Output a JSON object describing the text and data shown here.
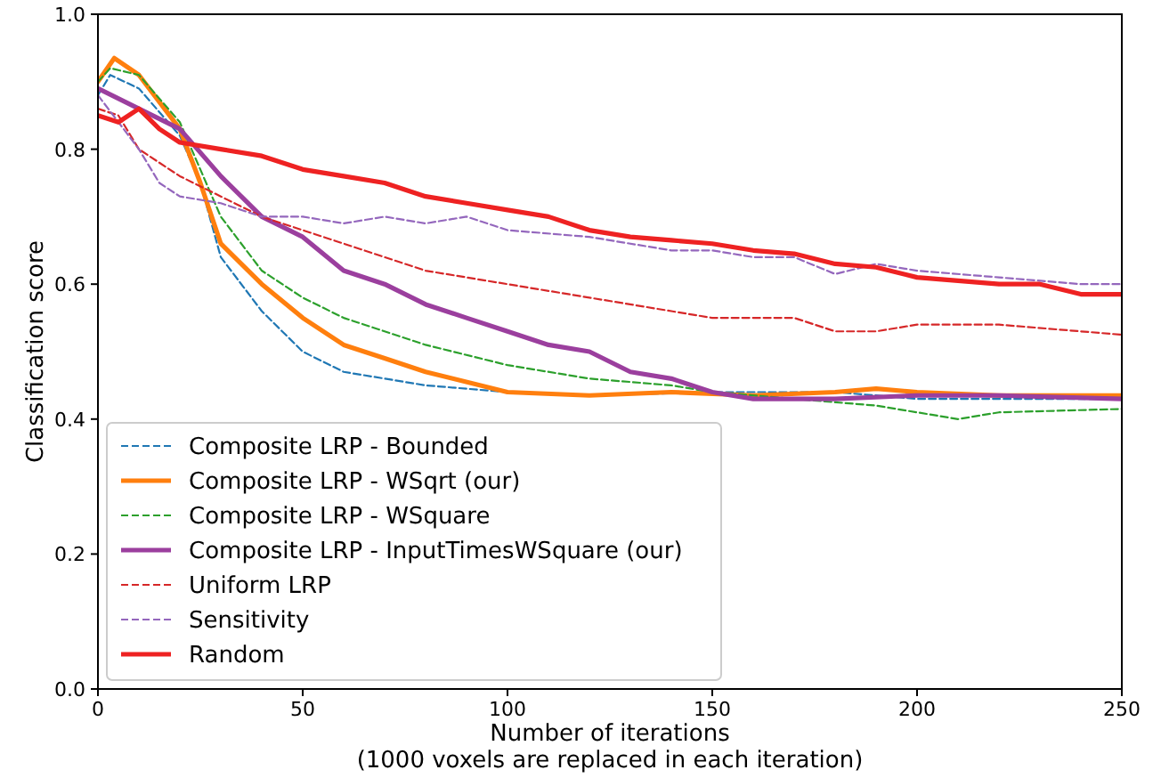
{
  "chart_data": {
    "type": "line",
    "xlabel": "Number of iterations\n(1000 voxels are replaced in each iteration)",
    "ylabel": "Classification score",
    "xlim": [
      0,
      250
    ],
    "ylim": [
      0,
      1
    ],
    "xticks": [
      0,
      50,
      100,
      150,
      200,
      250
    ],
    "yticks": [
      {
        "value": 0,
        "label": "0.0"
      },
      {
        "value": 0.2,
        "label": "0.2"
      },
      {
        "value": 0.4,
        "label": "0.4"
      },
      {
        "value": 0.6,
        "label": "0.6"
      },
      {
        "value": 0.8,
        "label": "0.8"
      },
      {
        "value": 1,
        "label": "1.0"
      }
    ],
    "grid": false,
    "legend": "bottom left",
    "series": [
      {
        "name": "Composite LRP - Bounded",
        "color": "#1f77b4",
        "line_style": "dashed",
        "x": [
          0,
          3,
          10,
          20,
          25,
          30,
          40,
          50,
          60,
          70,
          80,
          100,
          120,
          150,
          180,
          200,
          220,
          250
        ],
        "values": [
          0.88,
          0.91,
          0.89,
          0.82,
          0.75,
          0.64,
          0.56,
          0.5,
          0.47,
          0.46,
          0.45,
          0.44,
          0.435,
          0.44,
          0.44,
          0.43,
          0.43,
          0.43
        ]
      },
      {
        "name": "Composite LRP - WSqrt (our)",
        "color": "#ff7f0e",
        "line_style": "solid",
        "x": [
          0,
          4,
          10,
          20,
          25,
          30,
          40,
          50,
          60,
          70,
          80,
          100,
          120,
          140,
          160,
          180,
          190,
          200,
          220,
          250
        ],
        "values": [
          0.9,
          0.935,
          0.91,
          0.83,
          0.75,
          0.66,
          0.6,
          0.55,
          0.51,
          0.49,
          0.47,
          0.44,
          0.435,
          0.44,
          0.435,
          0.44,
          0.445,
          0.44,
          0.435,
          0.435
        ]
      },
      {
        "name": "Composite LRP - WSquare",
        "color": "#2ca02c",
        "line_style": "dashed",
        "x": [
          0,
          3,
          10,
          20,
          30,
          40,
          50,
          60,
          80,
          100,
          120,
          140,
          150,
          170,
          190,
          200,
          210,
          220,
          250
        ],
        "values": [
          0.9,
          0.92,
          0.91,
          0.84,
          0.7,
          0.62,
          0.58,
          0.55,
          0.51,
          0.48,
          0.46,
          0.45,
          0.44,
          0.43,
          0.42,
          0.41,
          0.4,
          0.41,
          0.415
        ]
      },
      {
        "name": "Composite LRP - InputTimesWSquare (our)",
        "color": "#9b3f9e",
        "line_style": "solid",
        "x": [
          0,
          10,
          20,
          30,
          40,
          50,
          60,
          70,
          80,
          90,
          100,
          110,
          120,
          130,
          140,
          150,
          160,
          180,
          200,
          220,
          250
        ],
        "values": [
          0.89,
          0.86,
          0.83,
          0.76,
          0.7,
          0.67,
          0.62,
          0.6,
          0.57,
          0.55,
          0.53,
          0.51,
          0.5,
          0.47,
          0.46,
          0.44,
          0.43,
          0.43,
          0.435,
          0.435,
          0.43
        ]
      },
      {
        "name": "Uniform LRP",
        "color": "#d62728",
        "line_style": "dashed",
        "x": [
          0,
          5,
          10,
          20,
          30,
          40,
          50,
          60,
          70,
          80,
          100,
          120,
          140,
          150,
          170,
          180,
          190,
          200,
          220,
          240,
          250
        ],
        "values": [
          0.86,
          0.85,
          0.8,
          0.76,
          0.73,
          0.7,
          0.68,
          0.66,
          0.64,
          0.62,
          0.6,
          0.58,
          0.56,
          0.55,
          0.55,
          0.53,
          0.53,
          0.54,
          0.54,
          0.53,
          0.525
        ]
      },
      {
        "name": "Sensitivity",
        "color": "#9467bd",
        "line_style": "dashed",
        "x": [
          0,
          10,
          15,
          20,
          30,
          40,
          50,
          60,
          70,
          80,
          90,
          100,
          120,
          140,
          150,
          160,
          170,
          180,
          190,
          200,
          220,
          240,
          250
        ],
        "values": [
          0.88,
          0.8,
          0.75,
          0.73,
          0.72,
          0.7,
          0.7,
          0.69,
          0.7,
          0.69,
          0.7,
          0.68,
          0.67,
          0.65,
          0.65,
          0.64,
          0.64,
          0.615,
          0.63,
          0.62,
          0.61,
          0.6,
          0.6
        ]
      },
      {
        "name": "Random",
        "color": "#ee2222",
        "line_style": "solid",
        "x": [
          0,
          5,
          10,
          15,
          20,
          30,
          40,
          50,
          60,
          70,
          80,
          90,
          100,
          110,
          120,
          130,
          140,
          150,
          160,
          170,
          180,
          190,
          200,
          210,
          220,
          230,
          240,
          250
        ],
        "values": [
          0.85,
          0.84,
          0.86,
          0.83,
          0.81,
          0.8,
          0.79,
          0.77,
          0.76,
          0.75,
          0.73,
          0.72,
          0.71,
          0.7,
          0.68,
          0.67,
          0.665,
          0.66,
          0.65,
          0.645,
          0.63,
          0.625,
          0.61,
          0.605,
          0.6,
          0.6,
          0.585,
          0.585
        ]
      }
    ]
  }
}
